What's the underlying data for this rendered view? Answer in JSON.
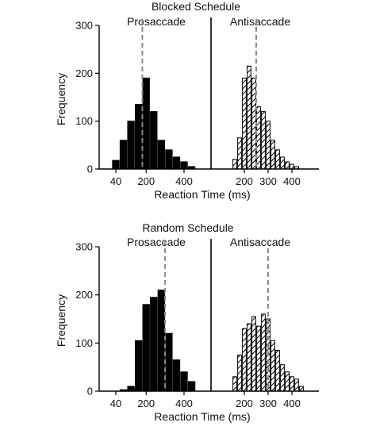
{
  "chart_data": [
    {
      "type": "bar",
      "title": "Blocked Schedule",
      "xlabel": "Reaction Time (ms)",
      "ylabel": "Frequency",
      "ylim": [
        0,
        300
      ],
      "yticks": [
        0,
        100,
        200,
        300
      ],
      "grid": false,
      "conditions": [
        {
          "name": "Prosaccade",
          "fill": "solid",
          "xticks": [
            40,
            200,
            400
          ],
          "bin_centers": [
            40,
            80,
            120,
            160,
            200,
            240,
            280,
            320,
            360,
            400,
            440
          ],
          "values": [
            18,
            60,
            100,
            135,
            190,
            120,
            60,
            40,
            25,
            15,
            5
          ],
          "median_line": 180
        },
        {
          "name": "Antisaccade",
          "fill": "hatched",
          "xticks": [
            200,
            300,
            400
          ],
          "bin_centers": [
            160,
            180,
            200,
            220,
            240,
            260,
            280,
            300,
            320,
            340,
            360,
            380,
            400,
            420,
            440
          ],
          "values": [
            20,
            65,
            190,
            215,
            190,
            130,
            120,
            100,
            60,
            40,
            25,
            15,
            10,
            5,
            0
          ],
          "median_line": 250
        }
      ]
    },
    {
      "type": "bar",
      "title": "Random Schedule",
      "xlabel": "Reaction Time (ms)",
      "ylabel": "Frequency",
      "ylim": [
        0,
        300
      ],
      "yticks": [
        0,
        100,
        200,
        300
      ],
      "grid": false,
      "conditions": [
        {
          "name": "Prosaccade",
          "fill": "solid",
          "xticks": [
            40,
            200,
            400
          ],
          "bin_centers": [
            40,
            80,
            120,
            160,
            200,
            240,
            280,
            320,
            360,
            400,
            440
          ],
          "values": [
            0,
            3,
            10,
            105,
            180,
            195,
            210,
            120,
            65,
            40,
            20
          ],
          "median_line": 300
        },
        {
          "name": "Antisaccade",
          "fill": "hatched",
          "xticks": [
            200,
            300,
            400
          ],
          "bin_centers": [
            160,
            180,
            200,
            220,
            240,
            260,
            280,
            300,
            320,
            340,
            360,
            380,
            400,
            420,
            440
          ],
          "values": [
            30,
            75,
            130,
            140,
            155,
            135,
            160,
            150,
            105,
            85,
            55,
            40,
            30,
            25,
            10
          ],
          "median_line": 300
        }
      ]
    }
  ]
}
